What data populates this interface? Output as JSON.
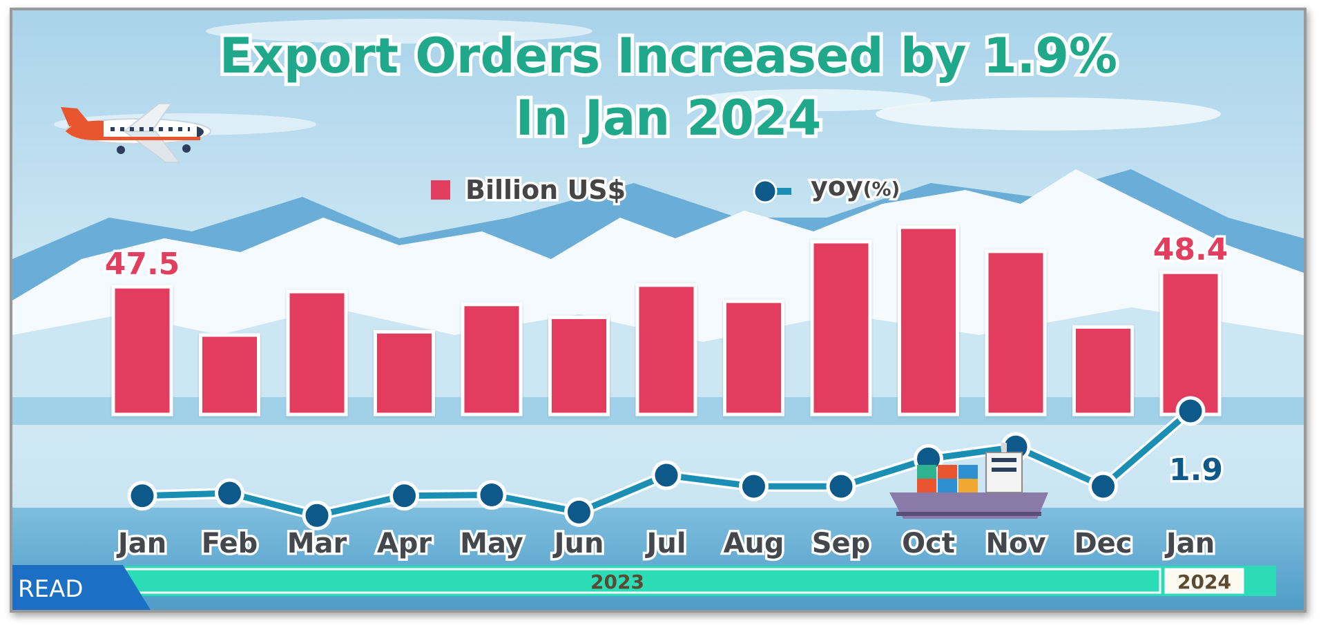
{
  "title_line1": "Export Orders Increased by 1.9%",
  "title_line2": "In  Jan 2024",
  "legend": {
    "bar_label": "Billion US$",
    "line_label": "yoy",
    "line_unit": "(%)"
  },
  "read_label": "READ",
  "years": [
    "2023",
    "2024"
  ],
  "colors": {
    "bar": "#e23e5f",
    "line": "#1b8fb3",
    "marker": "#0d5a8a",
    "title": "#1fa88a",
    "band": "#2bdcb7"
  },
  "icons": [
    "airplane-icon",
    "cargo-ship-icon",
    "legend-square-icon",
    "legend-line-marker-icon"
  ],
  "chart_data": {
    "type": "bar",
    "title": "Export Orders Increased by 1.9% In  Jan 2024",
    "categories": [
      "Jan",
      "Feb",
      "Mar",
      "Apr",
      "May",
      "Jun",
      "Jul",
      "Aug",
      "Sep",
      "Oct",
      "Nov",
      "Dec",
      "Jan"
    ],
    "category_years": [
      "2023",
      "2023",
      "2023",
      "2023",
      "2023",
      "2023",
      "2023",
      "2023",
      "2023",
      "2023",
      "2023",
      "2023",
      "2024"
    ],
    "series": [
      {
        "name": "Billion US$",
        "type": "bar",
        "values": [
          47.5,
          44.5,
          47.2,
          44.7,
          46.4,
          45.6,
          47.6,
          46.6,
          50.3,
          51.2,
          49.7,
          45.0,
          48.4
        ]
      },
      {
        "name": "yoy(%)",
        "type": "line",
        "values": [
          -8.0,
          -7.7,
          -10.3,
          -8.0,
          -7.9,
          -9.9,
          -5.6,
          -6.9,
          -6.9,
          -3.7,
          -2.3,
          -6.9,
          1.9
        ]
      }
    ],
    "data_labels": {
      "first_bar": "47.5",
      "last_bar": "48.4",
      "last_yoy": "1.9"
    },
    "legend_position": "top-center",
    "grid": false
  }
}
